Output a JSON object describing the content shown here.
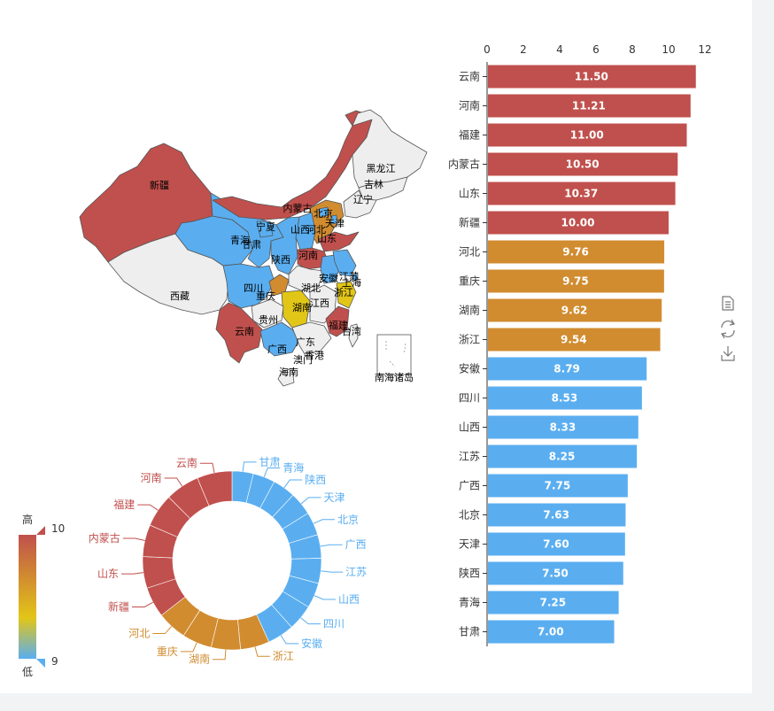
{
  "chart_data": [
    {
      "type": "bar",
      "orientation": "horizontal",
      "categories": [
        "云南",
        "河南",
        "福建",
        "内蒙古",
        "山东",
        "新疆",
        "河北",
        "重庆",
        "湖南",
        "浙江",
        "安徽",
        "四川",
        "山西",
        "江苏",
        "广西",
        "北京",
        "天津",
        "陕西",
        "青海",
        "甘肃"
      ],
      "values": [
        11.5,
        11.21,
        11.0,
        10.5,
        10.37,
        10.0,
        9.76,
        9.75,
        9.62,
        9.54,
        8.79,
        8.53,
        8.33,
        8.25,
        7.75,
        7.63,
        7.6,
        7.5,
        7.25,
        7.0
      ],
      "value_labels": [
        "11.50",
        "11.21",
        "11.00",
        "10.50",
        "10.37",
        "10.00",
        "9.76",
        "9.75",
        "9.62",
        "9.54",
        "8.79",
        "8.53",
        "8.33",
        "8.25",
        "7.75",
        "7.63",
        "7.60",
        "7.50",
        "7.25",
        "7.00"
      ],
      "xlim": [
        0,
        12
      ],
      "xticks": [
        "0",
        "2",
        "4",
        "6",
        "8",
        "10",
        "12"
      ],
      "x_axis_position": "top"
    },
    {
      "type": "pie",
      "style": "donut",
      "labels": [
        "甘肃",
        "青海",
        "陕西",
        "天津",
        "北京",
        "广西",
        "江苏",
        "山西",
        "四川",
        "安徽",
        "浙江",
        "湖南",
        "重庆",
        "河北",
        "新疆",
        "山东",
        "内蒙古",
        "福建",
        "河南",
        "云南"
      ],
      "values": [
        7.0,
        7.25,
        7.5,
        7.6,
        7.63,
        7.75,
        8.25,
        8.33,
        8.53,
        8.79,
        9.54,
        9.62,
        9.75,
        9.76,
        10.0,
        10.37,
        10.5,
        11.0,
        11.21,
        11.5
      ]
    },
    {
      "type": "map",
      "region_labels": [
        "新疆",
        "西藏",
        "青海",
        "甘肃",
        "宁夏",
        "内蒙古",
        "黑龙江",
        "吉林",
        "辽宁",
        "北京",
        "天津",
        "河北",
        "山西",
        "山东",
        "陕西",
        "河南",
        "四川",
        "重庆",
        "湖北",
        "安徽",
        "江苏",
        "上海",
        "浙江",
        "湖南",
        "江西",
        "贵州",
        "云南",
        "广西",
        "广东",
        "福建",
        "台湾",
        "澳门",
        "香港",
        "海南",
        "南海诸岛"
      ]
    }
  ],
  "visual_map": {
    "max_label": "10",
    "min_label": "9",
    "high_text": "高",
    "low_text": "低",
    "colors": [
      "#5aaef0",
      "#e2c617",
      "#d18c30",
      "#c0504d"
    ]
  },
  "toolbox": {
    "icons": [
      "data-view-icon",
      "restore-icon",
      "save-image-icon"
    ]
  }
}
